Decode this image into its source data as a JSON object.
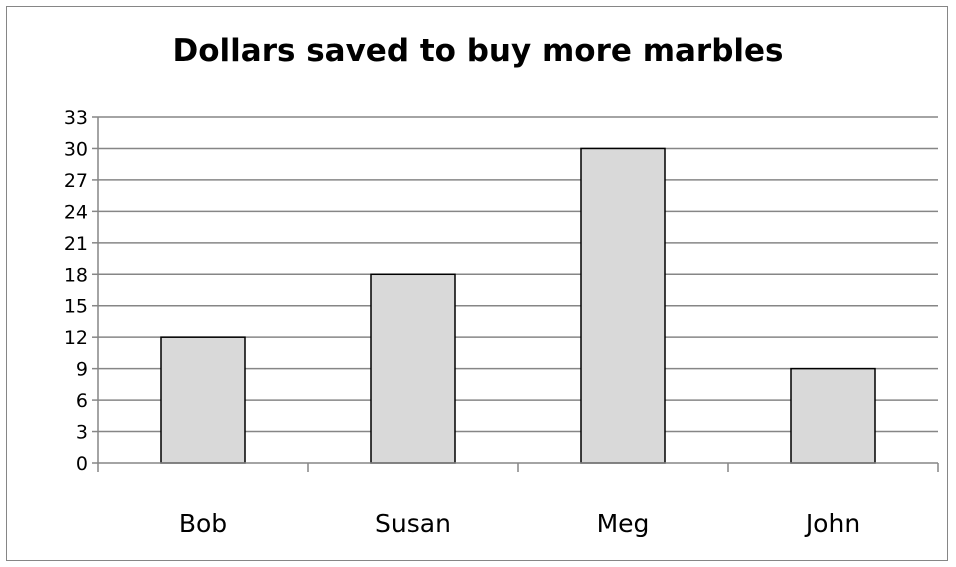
{
  "chart_data": {
    "type": "bar",
    "title": "Dollars saved to buy more marbles",
    "xlabel": "",
    "ylabel": "",
    "categories": [
      "Bob",
      "Susan",
      "Meg",
      "John"
    ],
    "values": [
      12,
      18,
      30,
      9
    ],
    "ylim": [
      0,
      33
    ],
    "yticks": [
      0,
      3,
      6,
      9,
      12,
      15,
      18,
      21,
      24,
      27,
      30,
      33
    ],
    "grid": true,
    "legend": "none",
    "colors": {
      "bar_fill": "#d9d9d9",
      "bar_stroke": "#000000",
      "gridline": "#868686",
      "axis": "#868686",
      "frame": "#868686"
    }
  }
}
